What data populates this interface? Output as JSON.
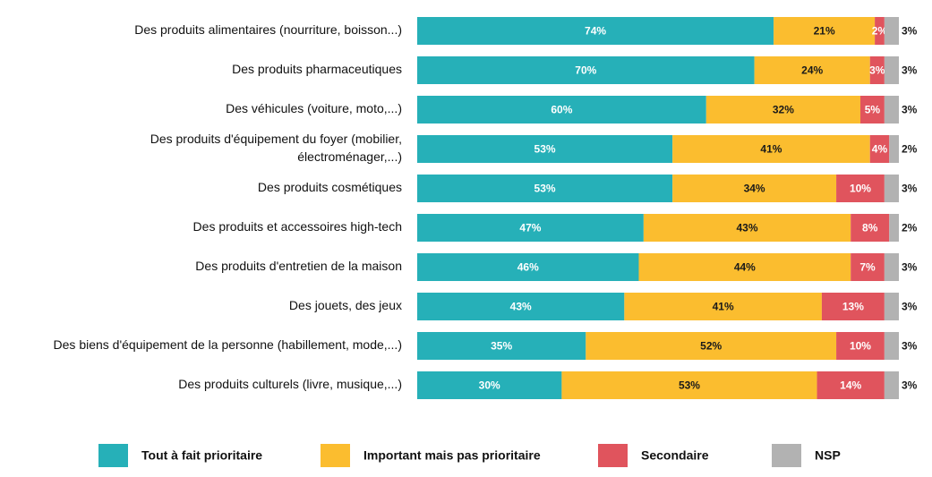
{
  "chart_data": {
    "type": "bar",
    "orientation": "horizontal",
    "stacked": true,
    "categories": [
      "Des produits alimentaires (nourriture, boisson...)",
      "Des produits pharmaceutiques",
      "Des véhicules (voiture, moto,...)",
      "Des produits d'équipement du foyer (mobilier, électroménager,...)",
      "Des produits cosmétiques",
      "Des produits et accessoires high-tech",
      "Des produits d'entretien de la maison",
      "Des jouets, des jeux",
      "Des biens d'équipement de la personne (habillement, mode,...)",
      "Des produits culturels (livre, musique,...)"
    ],
    "category_lines": [
      [
        "Des produits alimentaires (nourriture, boisson...)"
      ],
      [
        "Des produits pharmaceutiques"
      ],
      [
        "Des véhicules (voiture, moto,...)"
      ],
      [
        "Des produits d'équipement du foyer (mobilier,",
        "électroménager,...)"
      ],
      [
        "Des produits cosmétiques"
      ],
      [
        "Des produits et accessoires high-tech"
      ],
      [
        "Des produits d'entretien de la maison"
      ],
      [
        "Des jouets, des jeux"
      ],
      [
        "Des biens d'équipement de la personne (habillement, mode,...)"
      ],
      [
        "Des produits culturels (livre, musique,...)"
      ]
    ],
    "series": [
      {
        "name": "Tout à fait prioritaire",
        "color": "#26b0b8",
        "label_color": "#ffffff",
        "values": [
          74,
          70,
          60,
          53,
          53,
          47,
          46,
          43,
          35,
          30
        ]
      },
      {
        "name": "Important mais pas prioritaire",
        "color": "#fbbd2f",
        "label_color": "#1a1a1a",
        "values": [
          21,
          24,
          32,
          41,
          34,
          43,
          44,
          41,
          52,
          53
        ]
      },
      {
        "name": "Secondaire",
        "color": "#e0545d",
        "label_color": "#ffffff",
        "values": [
          2,
          3,
          5,
          4,
          10,
          8,
          7,
          13,
          10,
          14
        ]
      },
      {
        "name": "NSP",
        "color": "#b2b2b2",
        "label_color": "#1a1a1a",
        "values": [
          3,
          3,
          3,
          2,
          3,
          2,
          3,
          3,
          3,
          3
        ]
      }
    ],
    "value_suffix": "%",
    "xlim": [
      0,
      100
    ],
    "legend_position": "bottom",
    "title": "",
    "xlabel": "",
    "ylabel": ""
  }
}
